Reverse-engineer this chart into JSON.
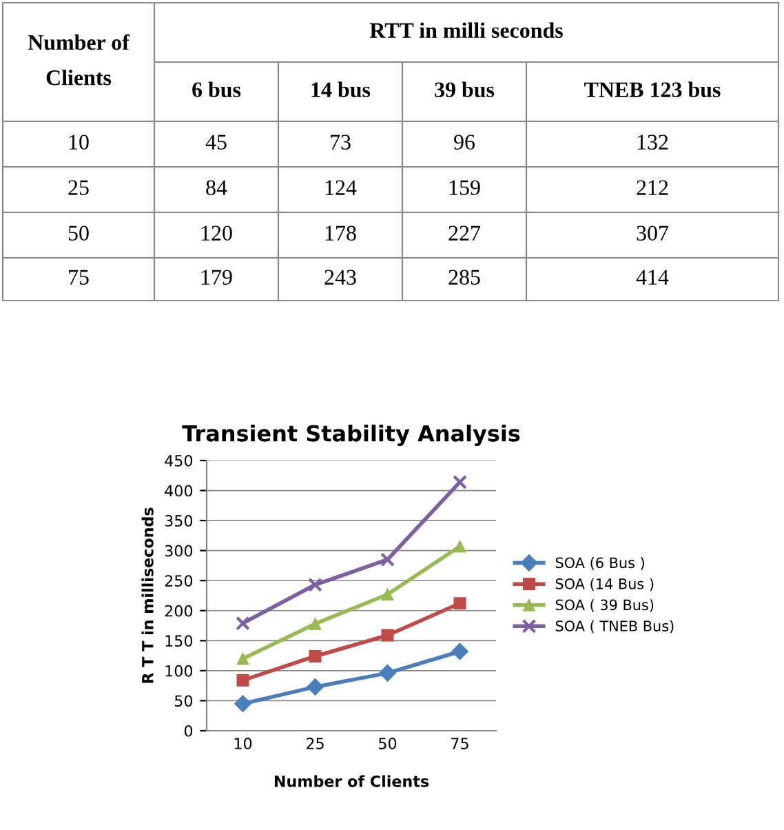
{
  "chart_data": [
    {
      "type": "other",
      "annotations": [
        "Number of Clients",
        "RTT in milli seconds",
        "6 bus",
        "14 bus",
        "39 bus",
        "TNEB 123 bus",
        "10",
        "45",
        "73",
        "96",
        "132",
        "25",
        "84",
        "124",
        "159",
        "212",
        "50",
        "120",
        "178",
        "227",
        "307",
        "75",
        "179",
        "243",
        "285",
        "414"
      ]
    },
    {
      "type": "line",
      "title": "Transient Stability Analysis",
      "xlabel": "Number of Clients",
      "ylabel": "R T T in milliseconds",
      "categories": [
        "10",
        "25",
        "50",
        "75"
      ],
      "ylim": [
        0,
        450
      ],
      "yticks": [
        0,
        50,
        100,
        150,
        200,
        250,
        300,
        350,
        400,
        450
      ],
      "grid": "y",
      "legend": "right",
      "series": [
        {
          "name": "SOA (6 Bus )",
          "color": "#4a7ebb",
          "marker": "diamond",
          "values": [
            45,
            73,
            96,
            132
          ]
        },
        {
          "name": "SOA (14 Bus )",
          "color": "#be4b48",
          "marker": "square",
          "values": [
            84,
            124,
            159,
            212
          ]
        },
        {
          "name": "SOA ( 39 Bus)",
          "color": "#98b954",
          "marker": "triangle",
          "values": [
            120,
            178,
            227,
            307
          ]
        },
        {
          "name": "SOA ( TNEB Bus)",
          "color": "#7d60a0",
          "marker": "cross",
          "values": [
            179,
            243,
            285,
            414
          ]
        }
      ]
    }
  ]
}
